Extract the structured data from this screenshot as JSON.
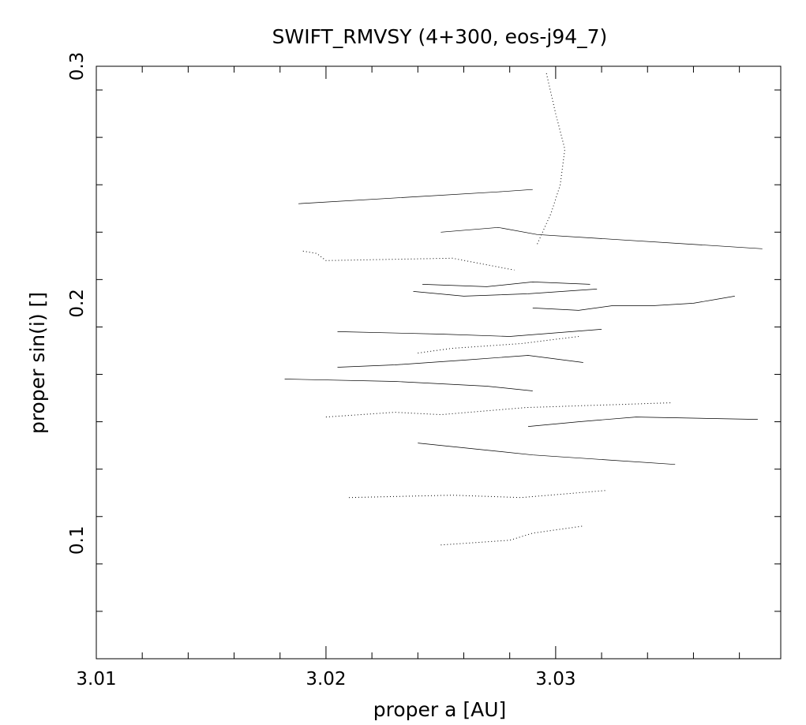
{
  "chart_data": {
    "type": "line",
    "title": "SWIFT_RMVSY (4+300, eos-j94_7)",
    "xlabel": "proper a [AU]",
    "ylabel": "proper sin(i) []",
    "xlim": [
      3.01,
      3.0398
    ],
    "ylim": [
      0.05,
      0.3
    ],
    "x_ticks": [
      "3.01",
      "3.02",
      "3.03"
    ],
    "y_ticks": [
      "0.1",
      "0.2",
      "0.3"
    ],
    "grid": false,
    "series": [
      {
        "values": [
          [
            3.019,
            0.222
          ],
          [
            3.0196,
            0.221
          ],
          [
            3.02,
            0.218
          ],
          [
            3.0255,
            0.219
          ],
          [
            3.0282,
            0.214
          ]
        ]
      },
      {
        "values": [
          [
            3.0188,
            0.242
          ],
          [
            3.0275,
            0.247
          ],
          [
            3.029,
            0.248
          ]
        ]
      },
      {
        "values": [
          [
            3.0205,
            0.188
          ],
          [
            3.025,
            0.187
          ],
          [
            3.028,
            0.186
          ],
          [
            3.032,
            0.189
          ]
        ]
      },
      {
        "values": [
          [
            3.02,
            0.152
          ],
          [
            3.023,
            0.154
          ],
          [
            3.025,
            0.153
          ],
          [
            3.0287,
            0.156
          ],
          [
            3.035,
            0.158
          ]
        ]
      },
      {
        "values": [
          [
            3.0205,
            0.173
          ],
          [
            3.023,
            0.174
          ],
          [
            3.026,
            0.176
          ],
          [
            3.0288,
            0.178
          ],
          [
            3.0312,
            0.175
          ]
        ]
      },
      {
        "values": [
          [
            3.0238,
            0.205
          ],
          [
            3.026,
            0.203
          ],
          [
            3.0288,
            0.204
          ],
          [
            3.0318,
            0.206
          ]
        ]
      },
      {
        "values": [
          [
            3.024,
            0.179
          ],
          [
            3.0255,
            0.181
          ],
          [
            3.0285,
            0.183
          ],
          [
            3.031,
            0.186
          ]
        ]
      },
      {
        "values": [
          [
            3.0242,
            0.208
          ],
          [
            3.027,
            0.207
          ],
          [
            3.029,
            0.209
          ],
          [
            3.0315,
            0.208
          ]
        ]
      },
      {
        "values": [
          [
            3.024,
            0.141
          ],
          [
            3.027,
            0.138
          ],
          [
            3.029,
            0.136
          ],
          [
            3.0352,
            0.132
          ]
        ]
      },
      {
        "values": [
          [
            3.021,
            0.118
          ],
          [
            3.0255,
            0.119
          ],
          [
            3.0285,
            0.118
          ],
          [
            3.0322,
            0.121
          ]
        ]
      },
      {
        "values": [
          [
            3.0182,
            0.168
          ],
          [
            3.023,
            0.167
          ],
          [
            3.027,
            0.165
          ],
          [
            3.029,
            0.163
          ]
        ]
      },
      {
        "values": [
          [
            3.025,
            0.23
          ],
          [
            3.0275,
            0.232
          ],
          [
            3.0292,
            0.229
          ],
          [
            3.039,
            0.223
          ]
        ]
      },
      {
        "values": [
          [
            3.025,
            0.098
          ],
          [
            3.028,
            0.1
          ],
          [
            3.029,
            0.103
          ],
          [
            3.0312,
            0.106
          ]
        ]
      },
      {
        "values": [
          [
            3.029,
            0.198
          ],
          [
            3.031,
            0.197
          ],
          [
            3.0325,
            0.199
          ],
          [
            3.0343,
            0.199
          ],
          [
            3.036,
            0.2
          ],
          [
            3.0378,
            0.203
          ]
        ]
      },
      {
        "values": [
          [
            3.0288,
            0.148
          ],
          [
            3.031,
            0.15
          ],
          [
            3.0335,
            0.152
          ],
          [
            3.0388,
            0.151
          ]
        ]
      },
      {
        "values": [
          [
            3.0296,
            0.297
          ],
          [
            3.03,
            0.28
          ],
          [
            3.0304,
            0.265
          ],
          [
            3.0302,
            0.25
          ],
          [
            3.0298,
            0.238
          ],
          [
            3.0292,
            0.225
          ]
        ]
      }
    ]
  }
}
